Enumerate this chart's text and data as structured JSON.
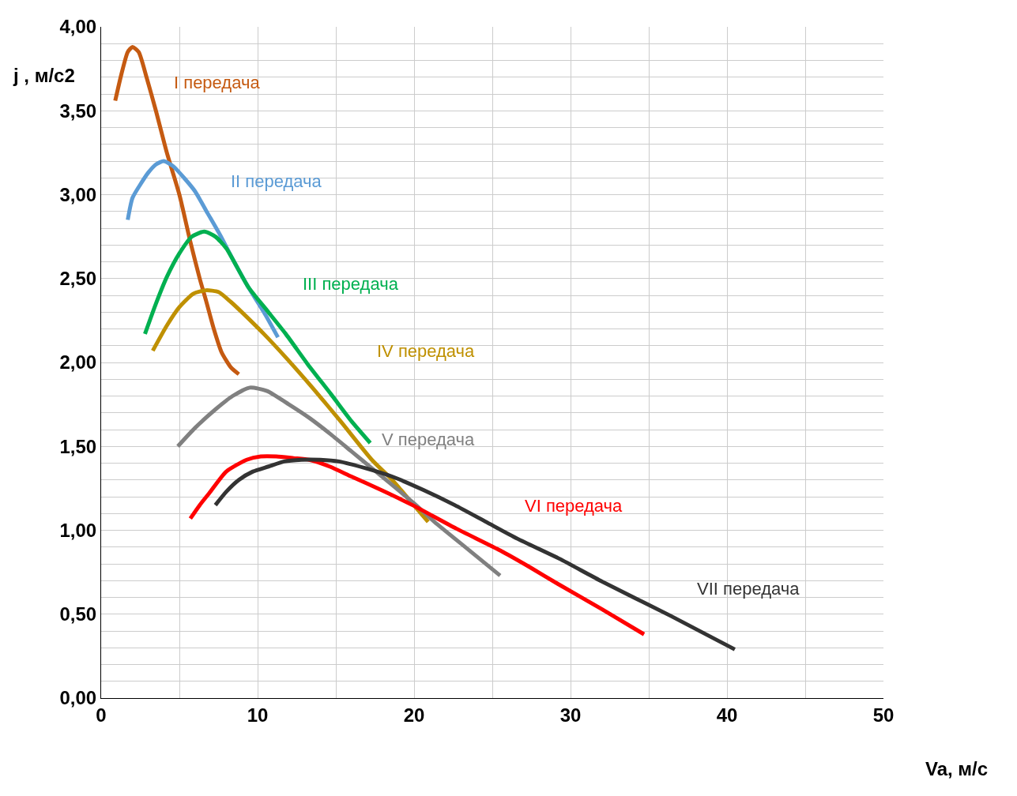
{
  "chart_data": {
    "type": "line",
    "xlabel": "Va, м/с",
    "ylabel": "j , м/с2",
    "xlim": [
      0,
      50
    ],
    "ylim": [
      0,
      4
    ],
    "xticks": [
      0,
      {
        "value": 5,
        "label": null
      },
      10,
      {
        "value": 15,
        "label": null
      },
      20,
      {
        "value": 25,
        "label": null
      },
      30,
      {
        "value": 35,
        "label": null
      },
      40,
      {
        "value": 45,
        "label": null
      },
      50
    ],
    "yticks": [
      {
        "value": 0,
        "label": "0,00"
      },
      {
        "value": 0.1,
        "label": null
      },
      {
        "value": 0.2,
        "label": null
      },
      {
        "value": 0.3,
        "label": null
      },
      {
        "value": 0.4,
        "label": null
      },
      {
        "value": 0.5,
        "label": "0,50"
      },
      {
        "value": 0.6,
        "label": null
      },
      {
        "value": 0.7,
        "label": null
      },
      {
        "value": 0.8,
        "label": null
      },
      {
        "value": 0.9,
        "label": null
      },
      {
        "value": 1,
        "label": "1,00"
      },
      {
        "value": 1.1,
        "label": null
      },
      {
        "value": 1.2,
        "label": null
      },
      {
        "value": 1.3,
        "label": null
      },
      {
        "value": 1.4,
        "label": null
      },
      {
        "value": 1.5,
        "label": "1,50"
      },
      {
        "value": 1.6,
        "label": null
      },
      {
        "value": 1.7,
        "label": null
      },
      {
        "value": 1.8,
        "label": null
      },
      {
        "value": 1.9,
        "label": null
      },
      {
        "value": 2,
        "label": "2,00"
      },
      {
        "value": 2.1,
        "label": null
      },
      {
        "value": 2.2,
        "label": null
      },
      {
        "value": 2.3,
        "label": null
      },
      {
        "value": 2.4,
        "label": null
      },
      {
        "value": 2.5,
        "label": "2,50"
      },
      {
        "value": 2.6,
        "label": null
      },
      {
        "value": 2.7,
        "label": null
      },
      {
        "value": 2.8,
        "label": null
      },
      {
        "value": 2.9,
        "label": null
      },
      {
        "value": 3,
        "label": "3,00"
      },
      {
        "value": 3.1,
        "label": null
      },
      {
        "value": 3.2,
        "label": null
      },
      {
        "value": 3.3,
        "label": null
      },
      {
        "value": 3.4,
        "label": null
      },
      {
        "value": 3.5,
        "label": "3,50"
      },
      {
        "value": 3.6,
        "label": null
      },
      {
        "value": 3.7,
        "label": null
      },
      {
        "value": 3.8,
        "label": null
      },
      {
        "value": 3.9,
        "label": null
      },
      {
        "value": 4,
        "label": "4,00"
      }
    ],
    "grid": true,
    "legend": false,
    "marker": "none",
    "line_style": "solid",
    "series": [
      {
        "name": "I передача",
        "color": "#c55a11",
        "x": [
          0.9,
          1.3,
          1.7,
          2.0,
          2.4,
          2.9,
          3.5,
          4.2,
          5.0,
          5.7,
          6.3,
          6.7,
          7.2,
          7.7,
          8.3,
          8.8
        ],
        "values": [
          3.56,
          3.72,
          3.85,
          3.88,
          3.85,
          3.7,
          3.5,
          3.25,
          3.0,
          2.72,
          2.5,
          2.37,
          2.2,
          2.06,
          1.97,
          1.93
        ]
      },
      {
        "name": "II передача",
        "color": "#5b9bd5",
        "x": [
          1.7,
          2.0,
          2.5,
          3.0,
          3.5,
          4.0,
          4.6,
          5.3,
          6.0,
          6.8,
          7.6,
          8.5,
          9.4,
          10.4,
          11.3
        ],
        "values": [
          2.85,
          2.98,
          3.06,
          3.13,
          3.18,
          3.2,
          3.17,
          3.1,
          3.02,
          2.89,
          2.76,
          2.6,
          2.45,
          2.3,
          2.15
        ]
      },
      {
        "name": "III передача",
        "color": "#00b050",
        "x": [
          2.8,
          3.5,
          4.2,
          5.0,
          5.8,
          6.6,
          7.3,
          8.0,
          9.4,
          10.6,
          11.8,
          13.2,
          14.7,
          16.0,
          17.2
        ],
        "values": [
          2.17,
          2.35,
          2.51,
          2.65,
          2.75,
          2.78,
          2.75,
          2.68,
          2.45,
          2.31,
          2.17,
          1.99,
          1.81,
          1.65,
          1.52
        ]
      },
      {
        "name": "IV передача",
        "color": "#bf9000",
        "x": [
          3.3,
          4.2,
          5.0,
          5.9,
          6.7,
          7.5,
          8.3,
          9.1,
          10.4,
          11.8,
          13.5,
          15.3,
          17.3,
          18.6,
          19.8,
          20.9
        ],
        "values": [
          2.07,
          2.22,
          2.33,
          2.41,
          2.43,
          2.42,
          2.36,
          2.29,
          2.17,
          2.03,
          1.85,
          1.65,
          1.42,
          1.3,
          1.17,
          1.05
        ]
      },
      {
        "name": "V передача",
        "color": "#808080",
        "x": [
          4.9,
          6.0,
          7.3,
          8.4,
          9.5,
          10.6,
          12.0,
          13.3,
          14.7,
          16.0,
          17.3,
          18.6,
          20.0,
          21.3,
          23.4,
          25.5
        ],
        "values": [
          1.5,
          1.61,
          1.72,
          1.8,
          1.85,
          1.83,
          1.75,
          1.67,
          1.57,
          1.47,
          1.37,
          1.27,
          1.16,
          1.05,
          0.89,
          0.73
        ]
      },
      {
        "name": "VI передача",
        "color": "#ff0000",
        "x": [
          5.7,
          6.3,
          6.9,
          8.0,
          9.3,
          10.2,
          11.2,
          12.3,
          13.3,
          14.6,
          16.0,
          17.9,
          19.9,
          22.7,
          25.5,
          27.4,
          29.2,
          32.0,
          34.7
        ],
        "values": [
          1.07,
          1.15,
          1.22,
          1.35,
          1.42,
          1.44,
          1.44,
          1.43,
          1.42,
          1.38,
          1.32,
          1.24,
          1.15,
          1.01,
          0.88,
          0.78,
          0.68,
          0.53,
          0.38
        ]
      },
      {
        "name": "VII передача",
        "color": "#333333",
        "x": [
          7.3,
          8.0,
          8.8,
          9.7,
          10.7,
          11.7,
          12.8,
          14.0,
          15.2,
          16.9,
          18.6,
          20.6,
          22.6,
          24.6,
          26.6,
          29.3,
          31.9,
          36.4,
          40.5
        ],
        "values": [
          1.15,
          1.23,
          1.3,
          1.35,
          1.38,
          1.41,
          1.42,
          1.42,
          1.41,
          1.37,
          1.32,
          1.24,
          1.15,
          1.05,
          0.95,
          0.83,
          0.7,
          0.49,
          0.29
        ]
      }
    ]
  }
}
